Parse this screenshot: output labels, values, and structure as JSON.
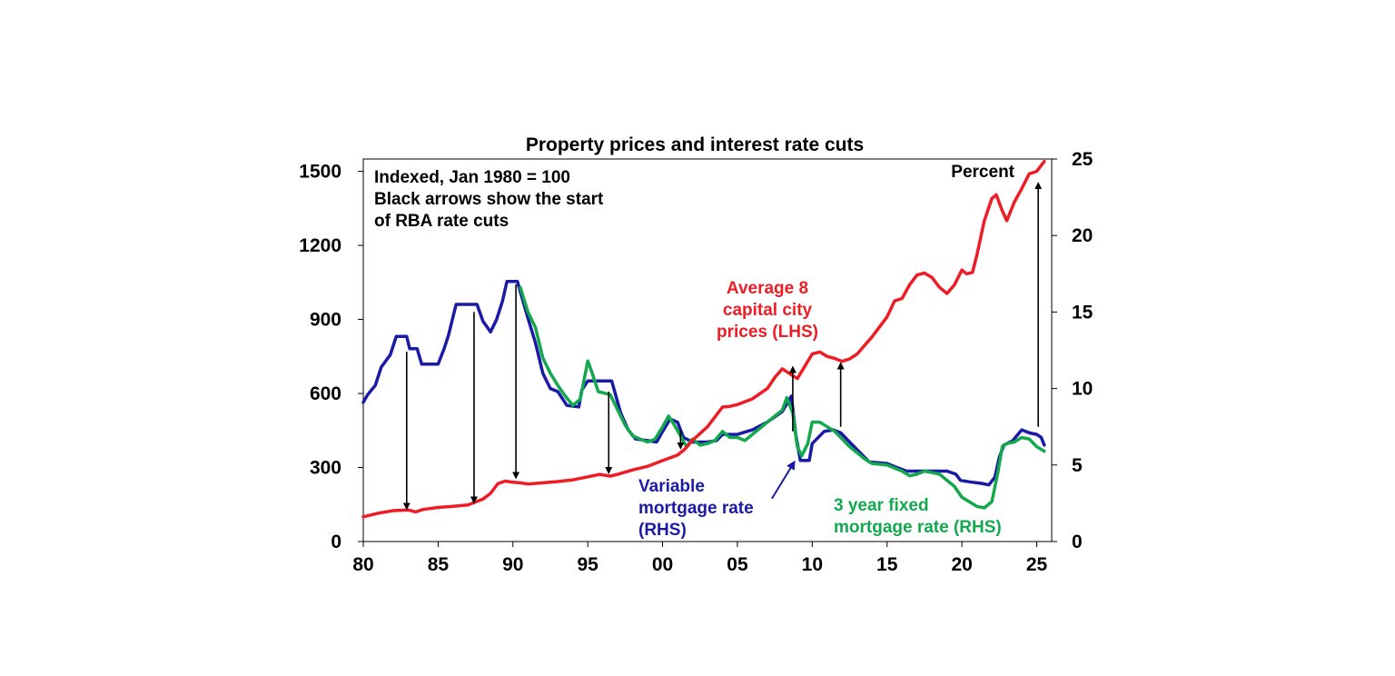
{
  "chart_data": {
    "type": "line",
    "title": "Property prices and interest rate cuts",
    "x_axis": {
      "range": [
        80,
        26
      ],
      "ticks": [
        "80",
        "85",
        "90",
        "95",
        "00",
        "05",
        "10",
        "15",
        "20",
        "25"
      ],
      "tick_years": [
        1980,
        1985,
        1990,
        1995,
        2000,
        2005,
        2010,
        2015,
        2020,
        2025
      ],
      "domain": [
        1980,
        2026
      ]
    },
    "y_left": {
      "range": [
        0,
        1550
      ],
      "ticks": [
        0,
        300,
        600,
        900,
        1200,
        1500
      ]
    },
    "y_right": {
      "range": [
        0,
        25
      ],
      "ticks": [
        0,
        5,
        10,
        15,
        20,
        25
      ],
      "unit_label": "Percent"
    },
    "notes": [
      "Indexed, Jan 1980 = 100",
      "Black arrows show the start",
      "of RBA rate cuts"
    ],
    "series": [
      {
        "name": "Average 8 capital city prices (LHS)",
        "label_lines": [
          "Average 8",
          "capital city",
          "prices (LHS)"
        ],
        "axis": "left",
        "color": "#ee1c25",
        "points": [
          [
            1980,
            100
          ],
          [
            1981,
            115
          ],
          [
            1982,
            125
          ],
          [
            1983,
            128
          ],
          [
            1983.5,
            120
          ],
          [
            1984,
            130
          ],
          [
            1985,
            138
          ],
          [
            1986,
            143
          ],
          [
            1987,
            148
          ],
          [
            1988,
            172
          ],
          [
            1988.5,
            195
          ],
          [
            1989,
            235
          ],
          [
            1989.5,
            245
          ],
          [
            1990,
            240
          ],
          [
            1990.5,
            238
          ],
          [
            1991,
            233
          ],
          [
            1992,
            238
          ],
          [
            1993,
            243
          ],
          [
            1994,
            250
          ],
          [
            1995,
            262
          ],
          [
            1995.8,
            272
          ],
          [
            1996.5,
            265
          ],
          [
            1997,
            272
          ],
          [
            1998,
            290
          ],
          [
            1999,
            305
          ],
          [
            2000,
            328
          ],
          [
            2001,
            350
          ],
          [
            2001.5,
            375
          ],
          [
            2002,
            410
          ],
          [
            2003,
            465
          ],
          [
            2004,
            545
          ],
          [
            2004.5,
            548
          ],
          [
            2005,
            555
          ],
          [
            2006,
            578
          ],
          [
            2007,
            620
          ],
          [
            2007.5,
            665
          ],
          [
            2008,
            700
          ],
          [
            2008.5,
            680
          ],
          [
            2009,
            660
          ],
          [
            2009.5,
            710
          ],
          [
            2010,
            760
          ],
          [
            2010.5,
            768
          ],
          [
            2011,
            750
          ],
          [
            2011.5,
            742
          ],
          [
            2012,
            730
          ],
          [
            2012.5,
            740
          ],
          [
            2013,
            760
          ],
          [
            2014,
            830
          ],
          [
            2015,
            910
          ],
          [
            2015.5,
            975
          ],
          [
            2016,
            985
          ],
          [
            2016.5,
            1040
          ],
          [
            2017,
            1080
          ],
          [
            2017.5,
            1088
          ],
          [
            2018,
            1070
          ],
          [
            2018.5,
            1030
          ],
          [
            2019,
            1005
          ],
          [
            2019.5,
            1040
          ],
          [
            2020,
            1100
          ],
          [
            2020.3,
            1085
          ],
          [
            2020.7,
            1090
          ],
          [
            2021,
            1160
          ],
          [
            2021.5,
            1300
          ],
          [
            2022,
            1390
          ],
          [
            2022.3,
            1405
          ],
          [
            2022.7,
            1340
          ],
          [
            2023,
            1300
          ],
          [
            2023.5,
            1375
          ],
          [
            2024,
            1430
          ],
          [
            2024.5,
            1490
          ],
          [
            2025,
            1500
          ],
          [
            2025.5,
            1540
          ]
        ]
      },
      {
        "name": "Variable mortgage rate (RHS)",
        "label_lines": [
          "Variable",
          "mortgage rate",
          "(RHS)"
        ],
        "axis": "right",
        "color": "#1a1aa6",
        "points": [
          [
            1980,
            9.1
          ],
          [
            1980.3,
            9.6
          ],
          [
            1980.8,
            10.2
          ],
          [
            1981.2,
            11.4
          ],
          [
            1981.8,
            12.2
          ],
          [
            1982.2,
            13.4
          ],
          [
            1982.9,
            13.4
          ],
          [
            1983.1,
            12.6
          ],
          [
            1983.6,
            12.6
          ],
          [
            1983.9,
            11.6
          ],
          [
            1985,
            11.6
          ],
          [
            1985.4,
            12.6
          ],
          [
            1985.7,
            13.5
          ],
          [
            1986.2,
            15.5
          ],
          [
            1987.6,
            15.5
          ],
          [
            1988,
            14.4
          ],
          [
            1988.5,
            13.7
          ],
          [
            1988.9,
            14.5
          ],
          [
            1989.3,
            15.7
          ],
          [
            1989.6,
            17
          ],
          [
            1990.3,
            17
          ],
          [
            1990.5,
            16.3
          ],
          [
            1991,
            14.6
          ],
          [
            1991.5,
            13
          ],
          [
            1992,
            11
          ],
          [
            1992.5,
            10
          ],
          [
            1993,
            9.8
          ],
          [
            1993.6,
            8.9
          ],
          [
            1994.4,
            8.8
          ],
          [
            1994.6,
            9.9
          ],
          [
            1995,
            10.5
          ],
          [
            1996.6,
            10.5
          ],
          [
            1996.8,
            9.8
          ],
          [
            1997.2,
            8.4
          ],
          [
            1997.7,
            7.3
          ],
          [
            1998.2,
            6.7
          ],
          [
            1999,
            6.6
          ],
          [
            1999.6,
            6.5
          ],
          [
            2000,
            7.2
          ],
          [
            2000.5,
            8
          ],
          [
            2001,
            7.8
          ],
          [
            2001.4,
            6.8
          ],
          [
            2002,
            6.5
          ],
          [
            2003,
            6.5
          ],
          [
            2003.6,
            6.6
          ],
          [
            2004,
            7
          ],
          [
            2005,
            7
          ],
          [
            2006,
            7.3
          ],
          [
            2007,
            7.8
          ],
          [
            2008,
            8.5
          ],
          [
            2008.6,
            9.5
          ],
          [
            2008.9,
            7
          ],
          [
            2009.2,
            5.3
          ],
          [
            2009.8,
            5.3
          ],
          [
            2010,
            6.4
          ],
          [
            2010.8,
            7.2
          ],
          [
            2011.4,
            7.3
          ],
          [
            2011.9,
            7.1
          ],
          [
            2012.4,
            6.6
          ],
          [
            2013.2,
            5.8
          ],
          [
            2013.8,
            5.2
          ],
          [
            2015,
            5.1
          ],
          [
            2015.5,
            4.9
          ],
          [
            2016.3,
            4.6
          ],
          [
            2018,
            4.6
          ],
          [
            2019,
            4.6
          ],
          [
            2019.6,
            4.4
          ],
          [
            2019.9,
            4
          ],
          [
            2020.5,
            3.9
          ],
          [
            2021.3,
            3.8
          ],
          [
            2021.8,
            3.7
          ],
          [
            2022.2,
            4.2
          ],
          [
            2022.5,
            5.5
          ],
          [
            2022.8,
            6.3
          ],
          [
            2023.4,
            6.6
          ],
          [
            2024,
            7.3
          ],
          [
            2024.5,
            7.1
          ],
          [
            2025,
            7.0
          ],
          [
            2025.3,
            6.8
          ],
          [
            2025.5,
            6.3
          ]
        ]
      },
      {
        "name": "3 year fixed mortgage rate (RHS)",
        "label_lines": [
          "3 year fixed",
          "mortgage rate (RHS)"
        ],
        "axis": "right",
        "color": "#14a84e",
        "points": [
          [
            1990.5,
            16.6
          ],
          [
            1991,
            15
          ],
          [
            1991.5,
            14
          ],
          [
            1992,
            12
          ],
          [
            1992.5,
            11
          ],
          [
            1993,
            10.2
          ],
          [
            1993.5,
            9.5
          ],
          [
            1994,
            8.9
          ],
          [
            1994.5,
            9.3
          ],
          [
            1994.8,
            10.8
          ],
          [
            1995,
            11.8
          ],
          [
            1995.3,
            11
          ],
          [
            1995.7,
            9.8
          ],
          [
            1996.5,
            9.6
          ],
          [
            1997,
            8.6
          ],
          [
            1997.5,
            7.6
          ],
          [
            1998,
            6.9
          ],
          [
            1998.5,
            6.7
          ],
          [
            1999,
            6.5
          ],
          [
            1999.5,
            6.7
          ],
          [
            2000,
            7.5
          ],
          [
            2000.4,
            8.2
          ],
          [
            2000.8,
            7.6
          ],
          [
            2001.2,
            6.9
          ],
          [
            2001.6,
            6.2
          ],
          [
            2002,
            6.7
          ],
          [
            2002.5,
            6.3
          ],
          [
            2003,
            6.4
          ],
          [
            2003.5,
            6.6
          ],
          [
            2004,
            7.2
          ],
          [
            2004.5,
            6.8
          ],
          [
            2005,
            6.8
          ],
          [
            2005.5,
            6.6
          ],
          [
            2006,
            7
          ],
          [
            2006.5,
            7.4
          ],
          [
            2007,
            7.8
          ],
          [
            2007.5,
            8.2
          ],
          [
            2008,
            8.6
          ],
          [
            2008.3,
            9.4
          ],
          [
            2008.7,
            8.4
          ],
          [
            2009,
            6.2
          ],
          [
            2009.3,
            5.6
          ],
          [
            2009.7,
            6.4
          ],
          [
            2010,
            7.8
          ],
          [
            2010.5,
            7.8
          ],
          [
            2011,
            7.5
          ],
          [
            2011.5,
            7.2
          ],
          [
            2012,
            6.7
          ],
          [
            2012.5,
            6.2
          ],
          [
            2013,
            5.8
          ],
          [
            2013.5,
            5.4
          ],
          [
            2014,
            5.1
          ],
          [
            2015,
            5.0
          ],
          [
            2016,
            4.6
          ],
          [
            2016.5,
            4.3
          ],
          [
            2017,
            4.4
          ],
          [
            2017.5,
            4.6
          ],
          [
            2018,
            4.5
          ],
          [
            2018.5,
            4.4
          ],
          [
            2019,
            4.0
          ],
          [
            2019.5,
            3.6
          ],
          [
            2020,
            2.9
          ],
          [
            2020.5,
            2.6
          ],
          [
            2021,
            2.3
          ],
          [
            2021.5,
            2.2
          ],
          [
            2022,
            2.6
          ],
          [
            2022.4,
            4.5
          ],
          [
            2022.7,
            6.2
          ],
          [
            2023,
            6.4
          ],
          [
            2023.5,
            6.5
          ],
          [
            2024,
            6.8
          ],
          [
            2024.5,
            6.7
          ],
          [
            2025,
            6.2
          ],
          [
            2025.5,
            5.9
          ]
        ]
      }
    ],
    "arrows": [
      {
        "year": 1982.9,
        "from_rate": 12.4,
        "to_index": 135
      },
      {
        "year": 1987.4,
        "from_rate": 15,
        "to_index": 160
      },
      {
        "year": 1990.2,
        "from_rate": 16.8,
        "to_index": 260
      },
      {
        "year": 1996.4,
        "from_rate": 9.8,
        "to_index": 280
      },
      {
        "year": 2001.2,
        "from_rate": 7.3,
        "to_index": 380
      },
      {
        "year": 2008.7,
        "from_rate": 7.2,
        "to_index": 705
      },
      {
        "year": 2011.9,
        "from_rate": 7.5,
        "to_index": 720
      },
      {
        "year": 2025.1,
        "from_rate": 7.5,
        "to_index": 1450
      }
    ],
    "rate_arrow": {
      "from": [
        2007.3,
        2.8
      ],
      "to": [
        2008.8,
        5.2
      ]
    }
  }
}
